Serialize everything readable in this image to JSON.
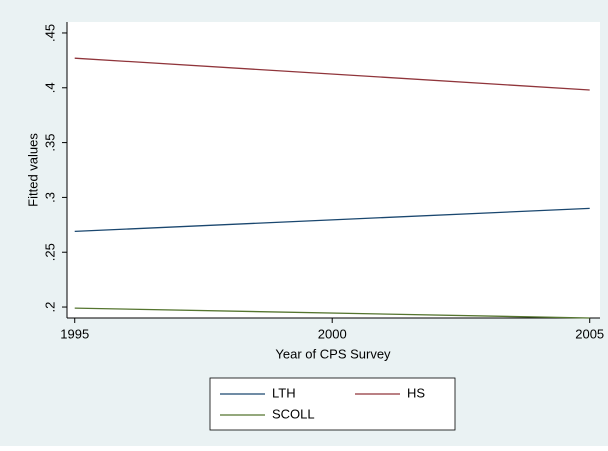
{
  "chart_data": {
    "type": "line",
    "x_label": "Year of CPS Survey",
    "y_label": "Fitted values",
    "x": [
      1995,
      2005
    ],
    "series": [
      {
        "name": "LTH",
        "color": "#1a476f",
        "values": [
          0.269,
          0.29
        ]
      },
      {
        "name": "HS",
        "color": "#90353b",
        "values": [
          0.427,
          0.398
        ]
      },
      {
        "name": "SCOLL",
        "color": "#55752f",
        "values": [
          0.199,
          0.19
        ]
      }
    ],
    "xlim": [
      1994.85,
      2005.2
    ],
    "xticks": [
      1995,
      2000,
      2005
    ],
    "ylim": [
      0.19,
      0.46
    ],
    "yticks": [
      {
        "value": 0.2,
        "label": ".2"
      },
      {
        "value": 0.25,
        "label": ".25"
      },
      {
        "value": 0.3,
        "label": ".3"
      },
      {
        "value": 0.35,
        "label": ".35"
      },
      {
        "value": 0.4,
        "label": ".4"
      },
      {
        "value": 0.45,
        "label": ".45"
      }
    ],
    "grid": false
  }
}
